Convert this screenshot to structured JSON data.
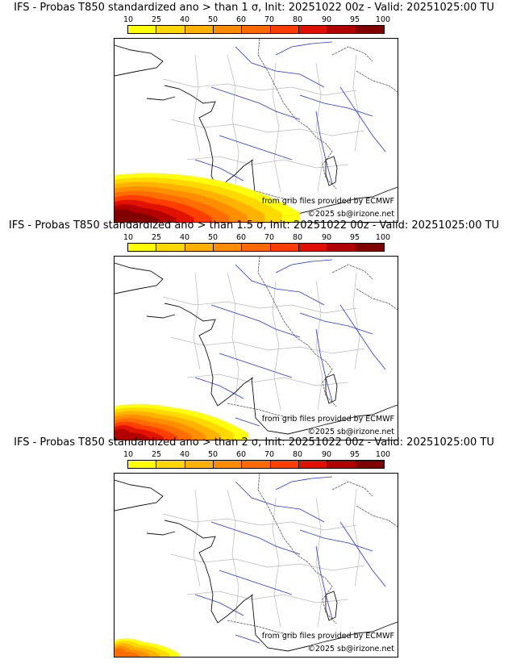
{
  "colorbar": {
    "ticks": [
      "10",
      "25",
      "40",
      "50",
      "60",
      "70",
      "80",
      "90",
      "95",
      "100"
    ],
    "colors": [
      "#ffff00",
      "#ffd700",
      "#ffb000",
      "#ff8c00",
      "#ff6a00",
      "#ff3c00",
      "#e01000",
      "#b00000",
      "#800000"
    ]
  },
  "panels": [
    {
      "title": "IFS - Probas T850  standardized ano > than 1 σ, Init: 20251022 00z - Valid: 20251025:00 TU",
      "credit_source": "from grib files provided by ECMWF",
      "credit_copyright": "©2025 sb@irizone.net",
      "max_probability_color": "#800000"
    },
    {
      "title": "IFS - Probas T850  standardized ano > than 1.5 σ, Init: 20251022 00z - Valid: 20251025:00 TU",
      "credit_source": "from grib files provided by ECMWF",
      "credit_copyright": "©2025 sb@irizone.net",
      "max_probability_color": "#b00000"
    },
    {
      "title": "IFS - Probas T850  standardized ano > than 2 σ, Init: 20251022 00z - Valid: 20251025:00 TU",
      "credit_source": "from grib files provided by ECMWF",
      "credit_copyright": "©2025 sb@irizone.net",
      "max_probability_color": "#ff6a00"
    }
  ]
}
